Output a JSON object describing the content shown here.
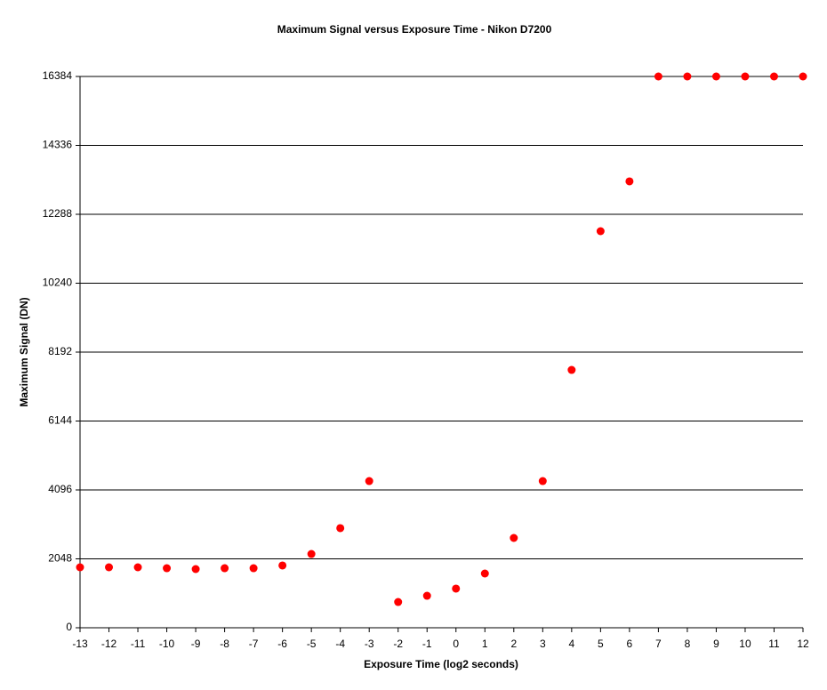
{
  "chart_data": {
    "type": "scatter",
    "title": "Maximum Signal versus Exposure Time - Nikon D7200",
    "x_label": "Exposure Time (log2 seconds)",
    "y_label": "Maximum Signal (DN)",
    "series": [
      {
        "name": "Maximum Signal",
        "color": "#ff0000",
        "x": [
          -13,
          -12,
          -11,
          -10,
          -9,
          -8,
          -7,
          -6,
          -5,
          -4,
          -3,
          -2,
          -1,
          0,
          1,
          2,
          3,
          4,
          5,
          6,
          7,
          8,
          9,
          10,
          11,
          12
        ],
        "values": [
          1797,
          1797,
          1797,
          1770,
          1744,
          1770,
          1770,
          1850,
          2193,
          2960,
          4360,
          766,
          951,
          1163,
          1612,
          2669,
          4360,
          7663,
          11786,
          13266,
          16384,
          16384,
          16384,
          16384,
          16384,
          16384
        ]
      }
    ],
    "xlim": [
      -13,
      12
    ],
    "xticks": [
      -13,
      -12,
      -11,
      -10,
      -9,
      -8,
      -7,
      -6,
      -5,
      -4,
      -3,
      -2,
      -1,
      0,
      1,
      2,
      3,
      4,
      5,
      6,
      7,
      8,
      9,
      10,
      11,
      12
    ],
    "ylim": [
      0,
      16384
    ],
    "yticks": [
      0,
      2048,
      4096,
      6144,
      8192,
      10240,
      12288,
      14336,
      16384
    ],
    "grid": true
  }
}
